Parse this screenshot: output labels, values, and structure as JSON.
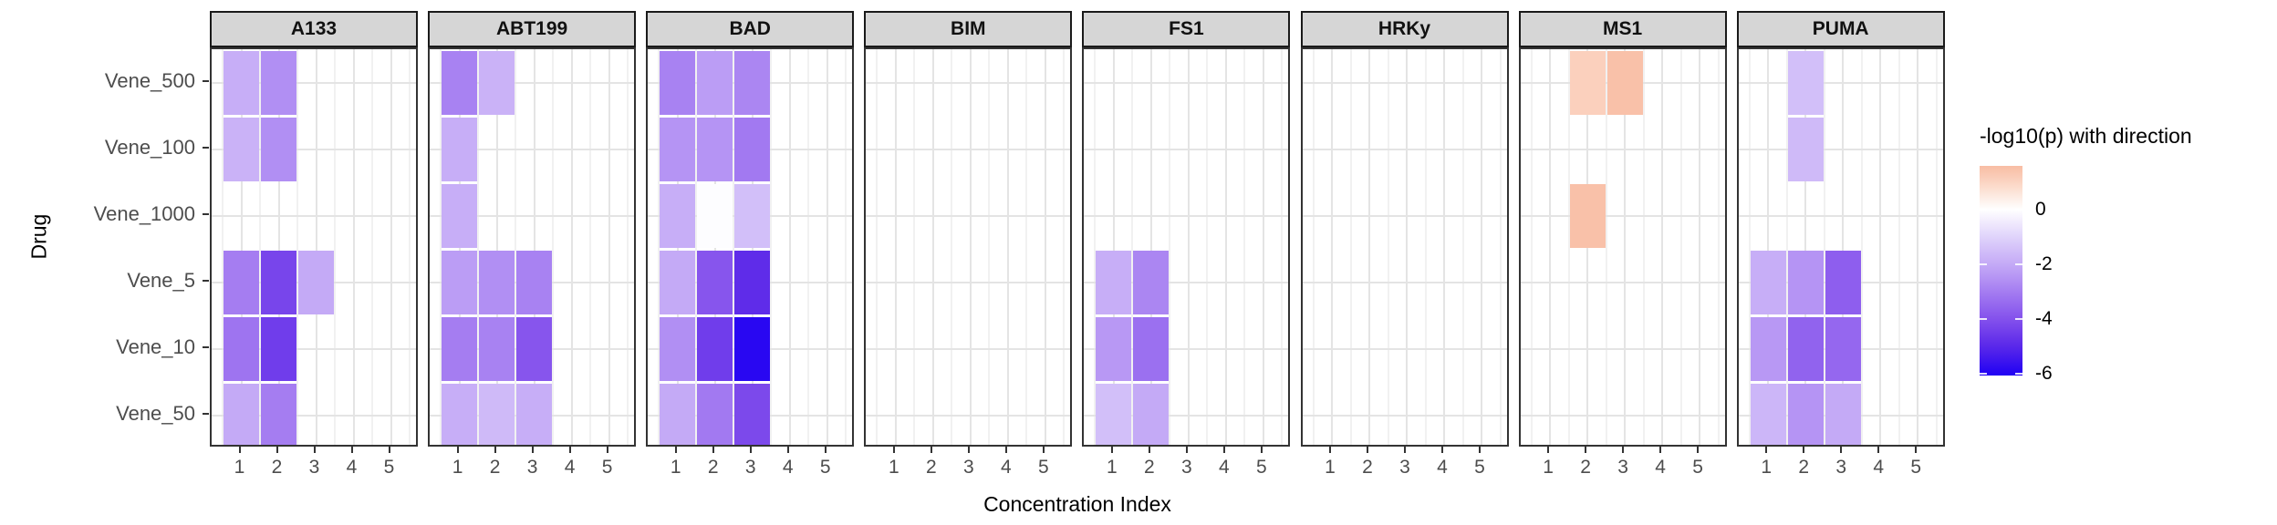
{
  "chart_data": {
    "type": "heatmap",
    "xlabel": "Concentration Index",
    "ylabel": "Drug",
    "x_ticks": [
      "1",
      "2",
      "3",
      "4",
      "5"
    ],
    "x_range": [
      0.5,
      5.5
    ],
    "y_categories": [
      "Vene_500",
      "Vene_100",
      "Vene_1000",
      "Vene_5",
      "Vene_10",
      "Vene_50"
    ],
    "grid": true,
    "legend": {
      "title": "-log10(p) with direction",
      "position": "right",
      "tick_labels": [
        "0",
        "-2",
        "-4",
        "-6"
      ],
      "tick_values": [
        0,
        -2,
        -4,
        -6
      ],
      "domain_top": 1.6,
      "domain_bottom": -6.07,
      "color_anchors": [
        [
          2,
          "#F6AE8F"
        ],
        [
          1,
          "#FBD4C2"
        ],
        [
          0,
          "#FFFFFF"
        ],
        [
          -1,
          "#E0D3FB"
        ],
        [
          -2,
          "#C4AAF6"
        ],
        [
          -3,
          "#A57DF1"
        ],
        [
          -4,
          "#8451EC"
        ],
        [
          -5,
          "#5B28E9"
        ],
        [
          -6,
          "#2303F3"
        ]
      ]
    },
    "facets": [
      {
        "label": "A133",
        "cells": [
          [
            "Vene_500",
            1,
            -1.9
          ],
          [
            "Vene_500",
            2,
            -2.6
          ],
          [
            "Vene_100",
            1,
            -1.8
          ],
          [
            "Vene_100",
            2,
            -2.6
          ],
          [
            "Vene_5",
            1,
            -3.0
          ],
          [
            "Vene_5",
            2,
            -4.3
          ],
          [
            "Vene_5",
            3,
            -2.0
          ],
          [
            "Vene_10",
            1,
            -3.2
          ],
          [
            "Vene_10",
            2,
            -4.5
          ],
          [
            "Vene_50",
            1,
            -2.0
          ],
          [
            "Vene_50",
            2,
            -3.0
          ]
        ]
      },
      {
        "label": "ABT199",
        "cells": [
          [
            "Vene_500",
            1,
            -2.9
          ],
          [
            "Vene_500",
            2,
            -1.8
          ],
          [
            "Vene_100",
            1,
            -1.9
          ],
          [
            "Vene_1000",
            1,
            -1.9
          ],
          [
            "Vene_5",
            1,
            -2.3
          ],
          [
            "Vene_5",
            2,
            -2.6
          ],
          [
            "Vene_5",
            3,
            -2.9
          ],
          [
            "Vene_10",
            1,
            -3.0
          ],
          [
            "Vene_10",
            2,
            -2.9
          ],
          [
            "Vene_10",
            3,
            -3.9
          ],
          [
            "Vene_50",
            1,
            -1.9
          ],
          [
            "Vene_50",
            2,
            -1.6
          ],
          [
            "Vene_50",
            3,
            -1.9
          ]
        ]
      },
      {
        "label": "BAD",
        "cells": [
          [
            "Vene_500",
            1,
            -2.9
          ],
          [
            "Vene_500",
            2,
            -2.3
          ],
          [
            "Vene_500",
            3,
            -2.8
          ],
          [
            "Vene_100",
            1,
            -2.5
          ],
          [
            "Vene_100",
            2,
            -2.5
          ],
          [
            "Vene_100",
            3,
            -3.1
          ],
          [
            "Vene_1000",
            1,
            -1.9
          ],
          [
            "Vene_1000",
            2,
            -0.05
          ],
          [
            "Vene_1000",
            3,
            -1.5
          ],
          [
            "Vene_5",
            1,
            -2.0
          ],
          [
            "Vene_5",
            2,
            -3.9
          ],
          [
            "Vene_5",
            3,
            -4.9
          ],
          [
            "Vene_10",
            1,
            -2.6
          ],
          [
            "Vene_10",
            2,
            -4.5
          ],
          [
            "Vene_10",
            3,
            -5.9
          ],
          [
            "Vene_50",
            1,
            -2.0
          ],
          [
            "Vene_50",
            2,
            -3.1
          ],
          [
            "Vene_50",
            3,
            -4.2
          ]
        ]
      },
      {
        "label": "BIM",
        "cells": []
      },
      {
        "label": "FS1",
        "cells": [
          [
            "Vene_5",
            1,
            -1.9
          ],
          [
            "Vene_5",
            2,
            -2.8
          ],
          [
            "Vene_10",
            1,
            -2.4
          ],
          [
            "Vene_10",
            2,
            -3.3
          ],
          [
            "Vene_50",
            1,
            -1.5
          ],
          [
            "Vene_50",
            2,
            -2.0
          ]
        ]
      },
      {
        "label": "HRKy",
        "cells": []
      },
      {
        "label": "MS1",
        "cells": [
          [
            "Vene_500",
            2,
            1.1
          ],
          [
            "Vene_500",
            3,
            1.5
          ],
          [
            "Vene_1000",
            2,
            1.5
          ]
        ]
      },
      {
        "label": "PUMA",
        "cells": [
          [
            "Vene_500",
            2,
            -1.5
          ],
          [
            "Vene_100",
            2,
            -1.6
          ],
          [
            "Vene_5",
            1,
            -1.9
          ],
          [
            "Vene_5",
            2,
            -2.5
          ],
          [
            "Vene_5",
            3,
            -3.7
          ],
          [
            "Vene_10",
            1,
            -2.4
          ],
          [
            "Vene_10",
            2,
            -3.6
          ],
          [
            "Vene_10",
            3,
            -3.5
          ],
          [
            "Vene_50",
            1,
            -1.7
          ],
          [
            "Vene_50",
            2,
            -2.5
          ],
          [
            "Vene_50",
            3,
            -2.0
          ]
        ]
      }
    ]
  }
}
